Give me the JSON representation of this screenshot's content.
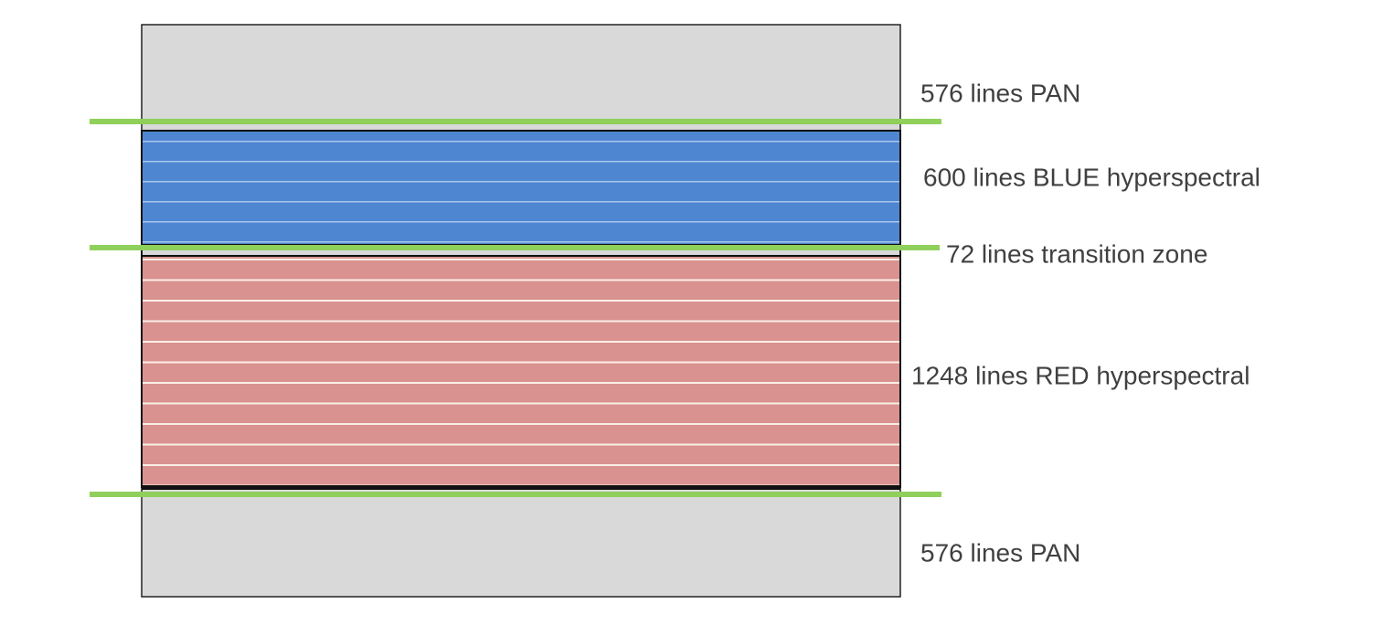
{
  "zones": [
    {
      "label": "576 lines PAN"
    },
    {
      "label": "600 lines BLUE hyperspectral"
    },
    {
      "label": "72 lines transition zone"
    },
    {
      "label": "1248 lines RED hyperspectral"
    },
    {
      "label": "576 lines PAN"
    }
  ]
}
